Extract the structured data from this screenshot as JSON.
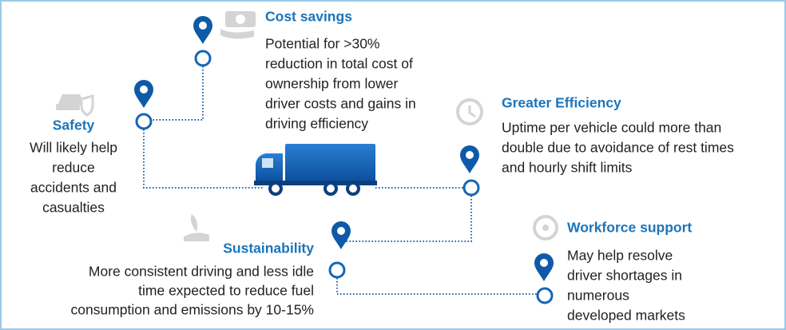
{
  "benefits": [
    {
      "title": "Cost savings",
      "lines": [
        "Potential for >30%",
        "reduction in total cost of",
        "ownership from lower",
        "driver costs and gains in",
        "driving efficiency"
      ]
    },
    {
      "title": "Safety",
      "lines": [
        "Will likely help",
        "reduce",
        "accidents and",
        "casualties"
      ]
    },
    {
      "title": "Greater Efficiency",
      "lines": [
        "Uptime per vehicle could more than",
        "double due to avoidance of rest times",
        "and hourly shift limits"
      ]
    },
    {
      "title": "Sustainability",
      "lines": [
        "More consistent driving and less idle",
        "time expected to reduce fuel",
        "consumption and emissions by 10-15%"
      ]
    },
    {
      "title": "Workforce support",
      "lines": [
        "May help resolve",
        "driver shortages in",
        "numerous",
        "developed markets"
      ]
    }
  ]
}
